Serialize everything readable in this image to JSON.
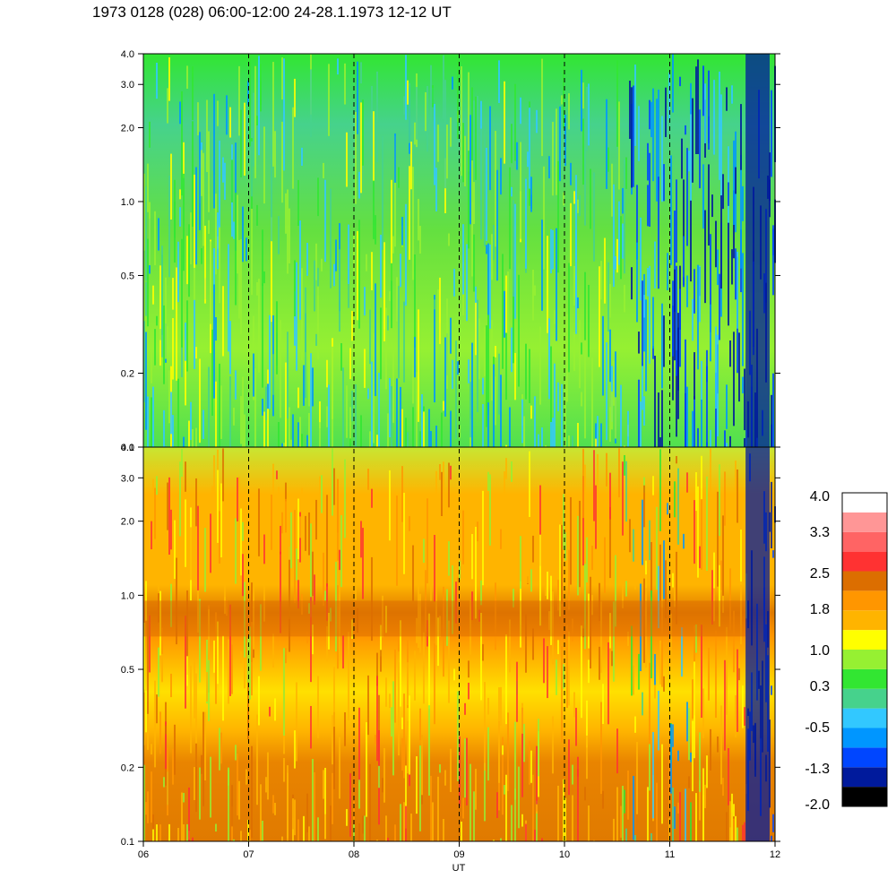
{
  "title": "1973 0128 (028) 06:00-12:00 24-28.1.1973  12-12 UT",
  "colors": {
    "colorbar": [
      "#000000",
      "#001a9c",
      "#0046ff",
      "#0096ff",
      "#32c8ff",
      "#46d28c",
      "#32e632",
      "#96f032",
      "#ffff00",
      "#ffb400",
      "#ff9600",
      "#dc6e00",
      "#ff3232",
      "#ff6464",
      "#ff9696",
      "#ffffff"
    ]
  },
  "chart_data": [
    {
      "type": "heatmap",
      "panel": "top",
      "title": "",
      "xlabel": "",
      "ylabel": "",
      "x_ticks": [
        "06",
        "07",
        "08",
        "09",
        "10",
        "11",
        "12"
      ],
      "y_ticks": [
        "0.1",
        "0.2",
        "0.5",
        "1.0",
        "2.0",
        "3.0",
        "4.0"
      ],
      "x_range": [
        6,
        12
      ],
      "y_range": [
        0.1,
        4.0
      ],
      "y_scale": "log",
      "grid": "dashed vertical lines at each hour",
      "dominant_levels": "green / yellow-green, blue after 10.6 UT, dark blue after 11.7 UT"
    },
    {
      "type": "heatmap",
      "panel": "bottom",
      "title": "",
      "xlabel": "UT",
      "ylabel": "",
      "x_ticks": [
        "06",
        "07",
        "08",
        "09",
        "10",
        "11",
        "12"
      ],
      "y_ticks": [
        "0.1",
        "0.2",
        "0.5",
        "1.0",
        "2.0",
        "3.0",
        "4.0"
      ],
      "x_range": [
        6,
        12
      ],
      "y_range": [
        0.1,
        4.0
      ],
      "y_scale": "log",
      "grid": "dashed vertical lines at each hour",
      "dominant_levels": "orange/yellow, dark orange band near 0.8, blue after 11.7 UT"
    }
  ],
  "colorbar": {
    "labels": [
      "4.0",
      "3.3",
      "2.5",
      "1.8",
      "1.0",
      "0.3",
      "-0.5",
      "-1.3",
      "-2.0"
    ],
    "range": [
      -2.0,
      4.0
    ]
  }
}
